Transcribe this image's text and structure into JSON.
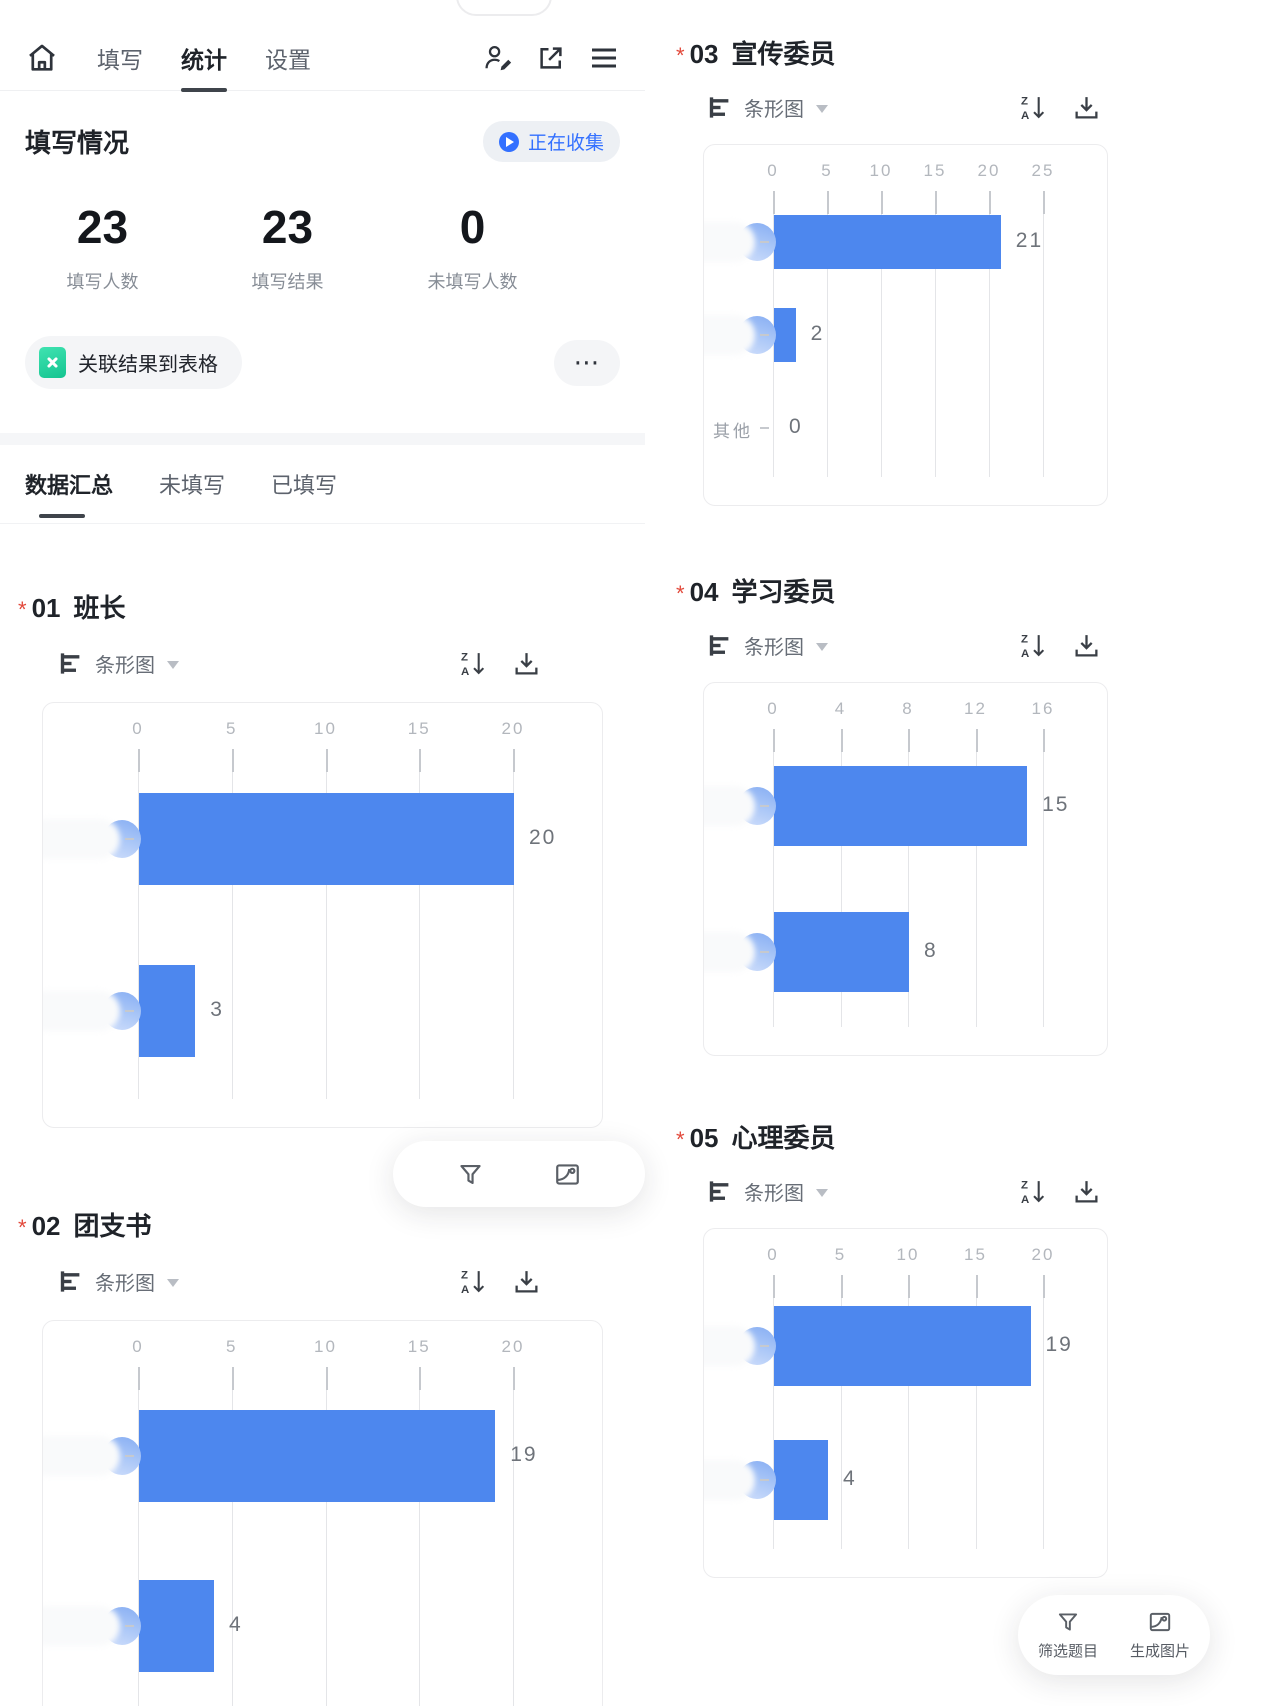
{
  "colors": {
    "accent_blue": "#3370ff",
    "bar_blue": "#4d87ee",
    "avatar_blue": "#a9c6f7",
    "sheet_teal": "#1fcf9e"
  },
  "nav": {
    "home_icon": "house-icon",
    "tabs": [
      {
        "label": "填写",
        "active": false
      },
      {
        "label": "统计",
        "active": true
      },
      {
        "label": "设置",
        "active": false
      }
    ],
    "action_icons": [
      "edit-collaborator-icon",
      "share-external-icon",
      "menu-icon"
    ]
  },
  "summary": {
    "title": "填写情况",
    "collect_status": "正在收集",
    "stats": [
      {
        "value": "23",
        "label": "填写人数"
      },
      {
        "value": "23",
        "label": "填写结果"
      },
      {
        "value": "0",
        "label": "未填写人数"
      }
    ]
  },
  "sheet_link": {
    "label": "关联结果到表格",
    "more": "⋯"
  },
  "result_tabs": [
    {
      "label": "数据汇总",
      "active": true
    },
    {
      "label": "未填写",
      "active": false
    },
    {
      "label": "已填写",
      "active": false
    }
  ],
  "required_mark": "*",
  "floating_toolbar": {
    "filter": "筛选题目",
    "generate_image": "生成图片"
  },
  "chart_data": [
    {
      "type": "bar",
      "orientation": "horizontal",
      "question_no": "01",
      "title": "班长",
      "chart_type_label": "条形图",
      "axis_ticks": [
        0,
        5,
        10,
        15,
        20
      ],
      "xlim": [
        0,
        20
      ],
      "grid": true,
      "labels_redacted": true,
      "categories": [
        "",
        ""
      ],
      "values": [
        20,
        3
      ]
    },
    {
      "type": "bar",
      "orientation": "horizontal",
      "question_no": "02",
      "title": "团支书",
      "chart_type_label": "条形图",
      "axis_ticks": [
        0,
        5,
        10,
        15,
        20
      ],
      "xlim": [
        0,
        20
      ],
      "grid": true,
      "labels_redacted": true,
      "categories": [
        "",
        ""
      ],
      "values": [
        19,
        4
      ]
    },
    {
      "type": "bar",
      "orientation": "horizontal",
      "question_no": "03",
      "title": "宣传委员",
      "chart_type_label": "条形图",
      "axis_ticks": [
        0,
        5,
        10,
        15,
        20,
        25
      ],
      "xlim": [
        0,
        25
      ],
      "grid": true,
      "labels_redacted": true,
      "categories": [
        "",
        "",
        "其他"
      ],
      "values": [
        21,
        2,
        0
      ]
    },
    {
      "type": "bar",
      "orientation": "horizontal",
      "question_no": "04",
      "title": "学习委员",
      "chart_type_label": "条形图",
      "axis_ticks": [
        0,
        4,
        8,
        12,
        16
      ],
      "xlim": [
        0,
        16
      ],
      "grid": true,
      "labels_redacted": true,
      "categories": [
        "",
        ""
      ],
      "values": [
        15,
        8
      ]
    },
    {
      "type": "bar",
      "orientation": "horizontal",
      "question_no": "05",
      "title": "心理委员",
      "chart_type_label": "条形图",
      "axis_ticks": [
        0,
        5,
        10,
        15,
        20
      ],
      "xlim": [
        0,
        20
      ],
      "grid": true,
      "labels_redacted": true,
      "categories": [
        "",
        ""
      ],
      "values": [
        19,
        4
      ]
    }
  ]
}
